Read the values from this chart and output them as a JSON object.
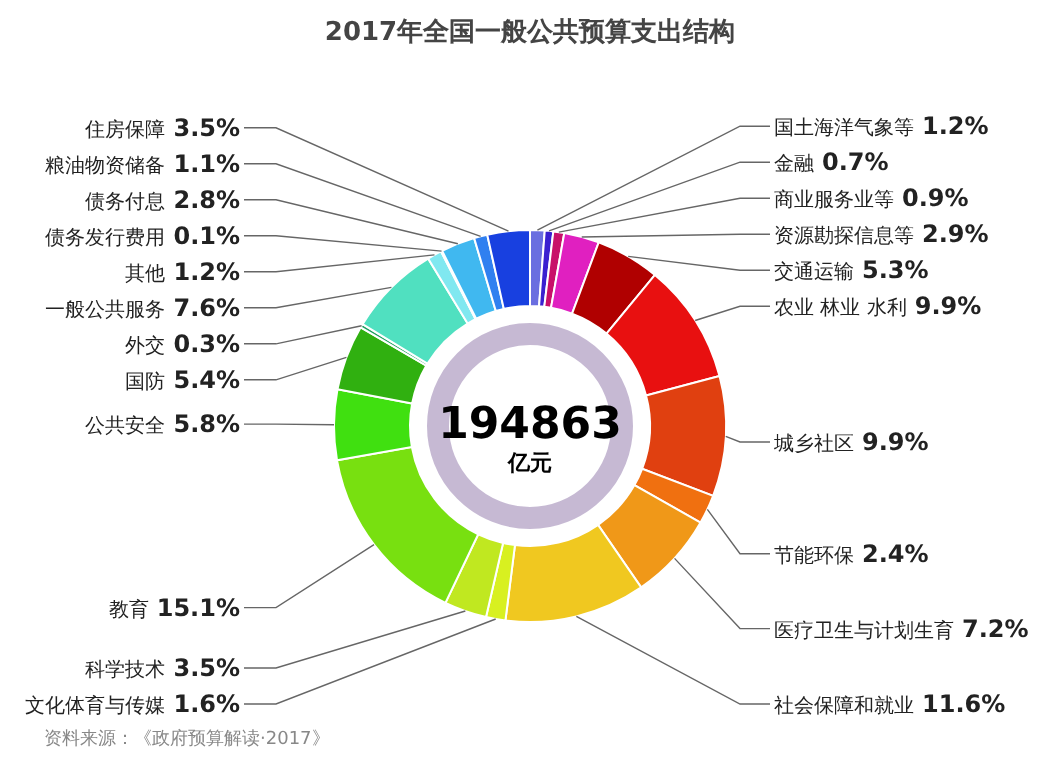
{
  "chart_data": {
    "type": "donut",
    "title": "2017年全国一般公共预算支出结构",
    "categories": [
      "国土海洋气象等",
      "金融",
      "商业服务业等",
      "资源勘探信息等",
      "交通运输",
      "农业 林业 水利",
      "城乡社区",
      "节能环保",
      "医疗卫生与计划生育",
      "社会保障和就业",
      "文化体育与传媒",
      "科学技术",
      "教育",
      "公共安全",
      "国防",
      "外交",
      "一般公共服务",
      "其他",
      "债务发行费用",
      "债务付息",
      "粮油物资储备",
      "住房保障"
    ],
    "values": [
      1.2,
      0.7,
      0.9,
      2.9,
      5.3,
      9.9,
      9.9,
      2.4,
      7.2,
      11.6,
      1.6,
      3.5,
      15.1,
      5.8,
      5.4,
      0.3,
      7.6,
      1.2,
      0.1,
      2.8,
      1.1,
      3.5
    ],
    "value_labels": [
      "1.2%",
      "0.7%",
      "0.9%",
      "2.9%",
      "5.3%",
      "9.9%",
      "9.9%",
      "2.4%",
      "7.2%",
      "11.6%",
      "1.6%",
      "3.5%",
      "15.1%",
      "5.8%",
      "5.4%",
      "0.3%",
      "7.6%",
      "1.2%",
      "0.1%",
      "2.8%",
      "1.1%",
      "3.5%"
    ],
    "colors": [
      "#6a6ee0",
      "#3a20d0",
      "#c8106a",
      "#e020c0",
      "#b00000",
      "#e81010",
      "#e04010",
      "#f07010",
      "#f09818",
      "#f0c820",
      "#d8f020",
      "#c0e820",
      "#78e010",
      "#40e010",
      "#30b010",
      "#20a060",
      "#50e0c0",
      "#80e8f0",
      "#60d0f0",
      "#40b8f0",
      "#3080f0",
      "#1840e0"
    ],
    "annotations": [
      "194863",
      "亿元",
      "资料来源：《政府预算解读·2017》"
    ]
  }
}
